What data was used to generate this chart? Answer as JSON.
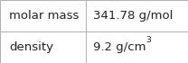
{
  "rows": [
    [
      "molar mass",
      "341.78 g/mol"
    ],
    [
      "density",
      "9.2 g/cm³"
    ]
  ],
  "background_color": "#ffffff",
  "border_color": "#b0b0b0",
  "label_fontsize": 9.5,
  "value_fontsize": 9.5,
  "col_split": 0.455,
  "text_color": "#222222",
  "fig_width": 2.08,
  "fig_height": 0.7,
  "dpi": 100
}
